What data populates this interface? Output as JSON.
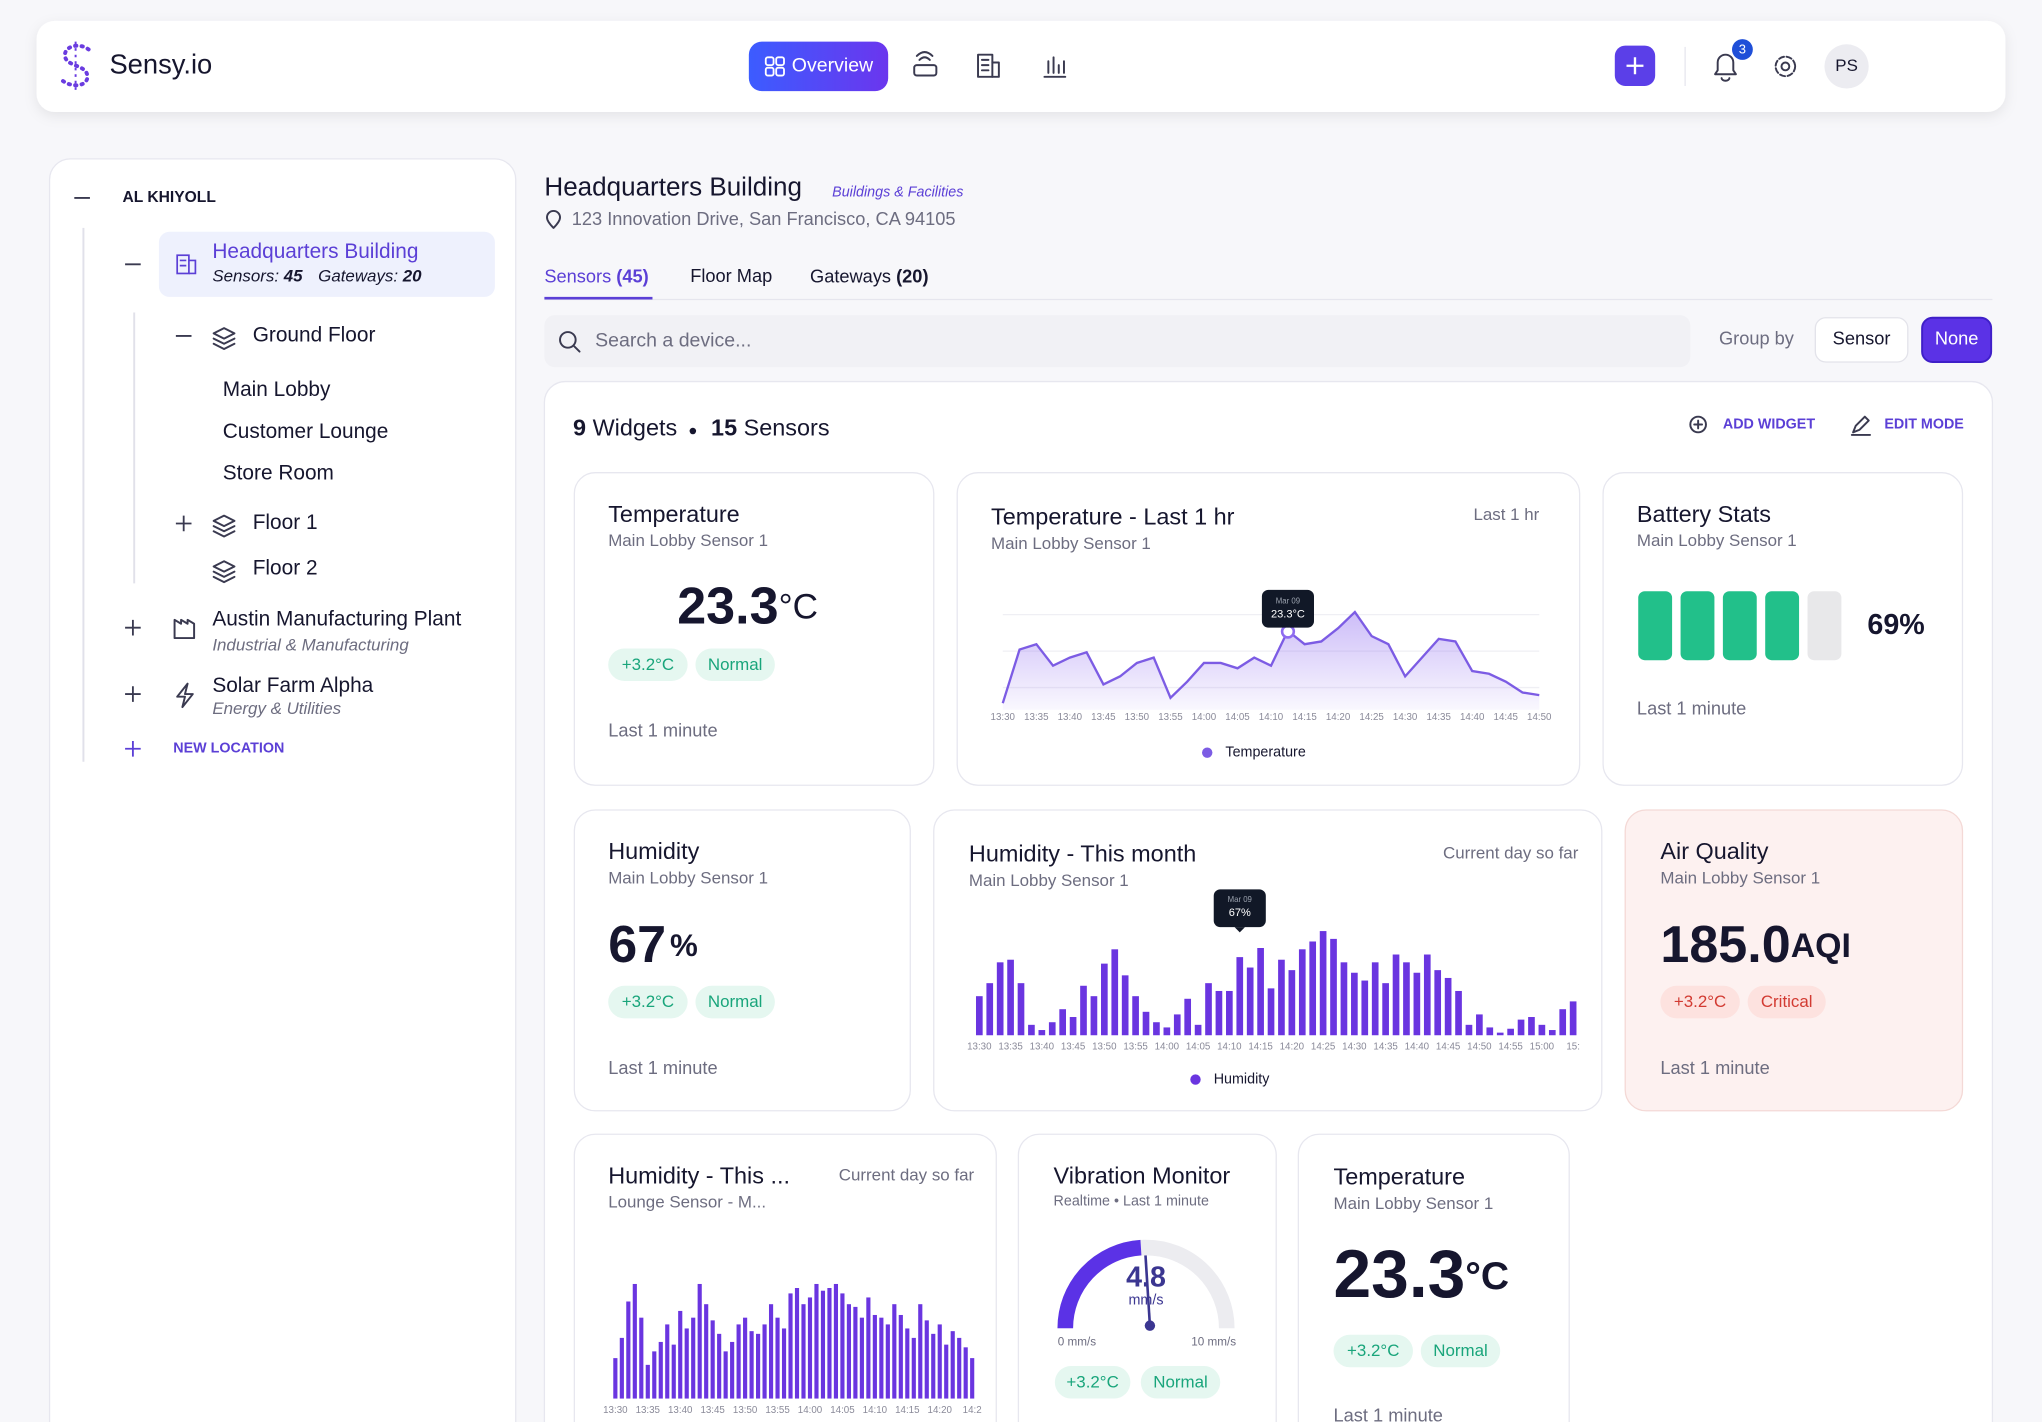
{
  "header": {
    "brand": "Sensy.io",
    "nav_active": "Overview",
    "notifications": 3,
    "avatar": "PS"
  },
  "sidebar": {
    "org": "AL KHIYOLL",
    "locations": [
      {
        "name": "Headquarters Building",
        "sensors_label": "Sensors:",
        "sensors": 45,
        "gateways_label": "Gateways:",
        "gateways": 20,
        "floors": [
          {
            "name": "Ground Floor",
            "rooms": [
              "Main Lobby",
              "Customer Lounge",
              "Store Room"
            ]
          },
          {
            "name": "Floor 1"
          },
          {
            "name": "Floor 2"
          }
        ]
      },
      {
        "name": "Austin Manufacturing Plant",
        "category": "Industrial & Manufacturing"
      },
      {
        "name": "Solar Farm Alpha",
        "category": "Energy & Utilities"
      }
    ],
    "new_location": "NEW LOCATION"
  },
  "page": {
    "title": "Headquarters Building",
    "category": "Buildings & Facilities",
    "address": "123 Innovation Drive, San Francisco, CA 94105",
    "tabs": [
      {
        "label": "Sensors",
        "count": "(45)"
      },
      {
        "label": "Floor Map"
      },
      {
        "label": "Gateways",
        "count": "(20)"
      }
    ],
    "search_placeholder": "Search a device...",
    "group_by": {
      "label": "Group by",
      "options": [
        "Sensor",
        "None"
      ]
    }
  },
  "widgets_panel": {
    "widget_count": 9,
    "widget_label": "Widgets",
    "sensor_count": 15,
    "sensor_label": "Sensors",
    "actions": [
      "ADD WIDGET",
      "EDIT MODE"
    ]
  },
  "widgets": [
    {
      "title": "Temperature",
      "subtitle": "Main Lobby Sensor 1",
      "value": 23.3,
      "unit": "°C",
      "delta": "+3.2°C",
      "status": "Normal",
      "footer": "Last 1 minute"
    },
    {
      "chart_data": {
        "type": "line",
        "title": "Temperature - Last 1 hr",
        "subtitle": "Main Lobby Sensor 1",
        "range": "Last 1 hr",
        "categories": [
          "13:30",
          null,
          "13:35",
          null,
          "13:40",
          null,
          "13:45",
          null,
          "13:50",
          null,
          "13:55",
          null,
          "14:00",
          null,
          "14:05",
          null,
          "14:10",
          null,
          "14:15",
          null,
          "14:20",
          null,
          "14:25",
          null,
          "14:30",
          null,
          "14:35",
          null,
          "14:40",
          null,
          "14:45",
          null,
          "14:50"
        ],
        "series": [
          {
            "name": "Temperature",
            "color": "#7c5ce4",
            "values": [
              20.6,
              22.6,
              22.8,
              22.0,
              22.3,
              22.5,
              21.3,
              21.6,
              22.1,
              22.3,
              20.8,
              21.4,
              22.1,
              22.1,
              21.9,
              22.3,
              22.0,
              23.3,
              22.8,
              22.9,
              23.4,
              24.0,
              23.1,
              22.8,
              21.6,
              22.3,
              23.0,
              22.9,
              21.8,
              21.7,
              21.4,
              21.0,
              20.9
            ]
          }
        ],
        "tooltip": {
          "date": "Mar 09",
          "label": "23.3°C"
        }
      }
    },
    {
      "title": "Battery Stats",
      "subtitle": "Main Lobby Sensor 1",
      "value": 69,
      "value_label": "69%",
      "segments": 5,
      "footer": "Last 1 minute"
    },
    {
      "title": "Humidity",
      "subtitle": "Main Lobby Sensor 1",
      "value": 67,
      "unit": "%",
      "delta": "+3.2°C",
      "status": "Normal",
      "footer": "Last 1 minute"
    },
    {
      "chart_data": {
        "type": "bar",
        "title": "Humidity - This month",
        "subtitle": "Main Lobby Sensor 1",
        "range": "Current day so far",
        "categories": [
          "13:30",
          null,
          null,
          "13:35",
          null,
          null,
          "13:40",
          null,
          null,
          "13:45",
          null,
          null,
          "13:50",
          null,
          null,
          "13:55",
          null,
          null,
          "14:00",
          null,
          null,
          "14:05",
          null,
          null,
          "14:10",
          null,
          null,
          "14:15",
          null,
          null,
          "14:20",
          null,
          null,
          "14:25",
          null,
          null,
          "14:30",
          null,
          null,
          "14:35",
          null,
          null,
          "14:40",
          null,
          null,
          "14:45",
          null,
          null,
          "14:50",
          null,
          null,
          "14:55",
          null,
          null,
          "15:00",
          null,
          null,
          "15:"
        ],
        "series": [
          {
            "name": "Humidity",
            "color": "#6a35e0",
            "values": [
              30,
              40,
              56,
              58,
              40,
              8,
              4,
              10,
              20,
              14,
              38,
              30,
              55,
              66,
              46,
              30,
              18,
              10,
              6,
              16,
              28,
              8,
              40,
              34,
              34,
              60,
              52,
              67,
              36,
              58,
              50,
              66,
              72,
              80,
              74,
              56,
              48,
              42,
              56,
              40,
              62,
              56,
              48,
              62,
              50,
              44,
              34,
              8,
              16,
              6,
              2,
              5,
              12,
              14,
              8,
              4,
              20,
              26
            ]
          }
        ],
        "tooltip": {
          "date": "Mar 09",
          "label": "67%"
        }
      }
    },
    {
      "title": "Air Quality",
      "subtitle": "Main Lobby Sensor 1",
      "value": 185,
      "value_label": "185.0",
      "unit": "AQI",
      "delta": "+3.2°C",
      "status": "Critical",
      "footer": "Last 1 minute"
    },
    {
      "chart_data": {
        "type": "bar",
        "title": "Humidity - This ...",
        "subtitle": "Lounge Sensor -  M...",
        "range": "Current day so far",
        "categories": [
          "13:30",
          null,
          null,
          null,
          null,
          "13:35",
          null,
          null,
          null,
          null,
          "13:40",
          null,
          null,
          null,
          null,
          "13:45",
          null,
          null,
          null,
          null,
          "13:50",
          null,
          null,
          null,
          null,
          "13:55",
          null,
          null,
          null,
          null,
          "14:00",
          null,
          null,
          null,
          null,
          "14:05",
          null,
          null,
          null,
          null,
          "14:10",
          null,
          null,
          null,
          null,
          "14:15",
          null,
          null,
          null,
          null,
          "14:20",
          null,
          null,
          null,
          null,
          "14:2"
        ],
        "series": [
          {
            "name": "Humidity",
            "color": "#6a35e0",
            "values": [
              30,
              45,
              72,
              85,
              60,
              25,
              35,
              42,
              55,
              40,
              65,
              52,
              60,
              85,
              70,
              58,
              48,
              35,
              42,
              55,
              60,
              50,
              48,
              55,
              70,
              60,
              52,
              78,
              82,
              70,
              75,
              85,
              80,
              82,
              85,
              78,
              70,
              68,
              60,
              75,
              62,
              60,
              55,
              70,
              62,
              52,
              45,
              70,
              58,
              48,
              55,
              40,
              50,
              45,
              38,
              30
            ]
          }
        ]
      }
    },
    {
      "title": "Vibration Monitor",
      "subtitle": "Realtime • Last 1 minute",
      "value": 4.8,
      "unit": "mm/s",
      "min": 0,
      "min_label": "0 mm/s",
      "max": 10,
      "max_label": "10 mm/s",
      "delta": "+3.2°C",
      "status": "Normal"
    },
    {
      "title": "Temperature",
      "subtitle": "Main Lobby Sensor 1",
      "value": 23.3,
      "unit": "°C",
      "delta": "+3.2°C",
      "status": "Normal",
      "footer": "Last 1 minute"
    }
  ]
}
